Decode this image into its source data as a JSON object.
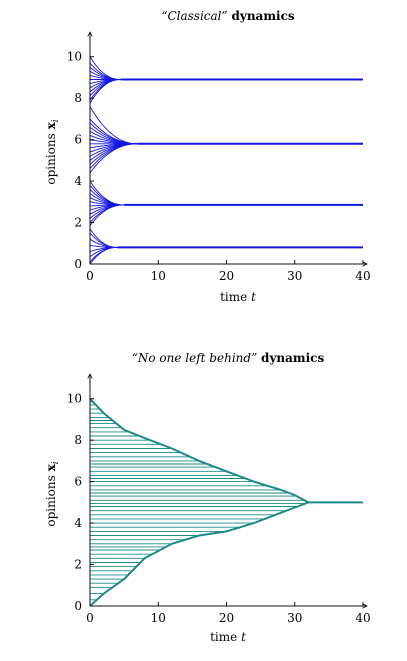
{
  "chart_data": [
    {
      "type": "line",
      "title_italic": "“Classical”",
      "title_bold": "dynamics",
      "xlabel": "time",
      "xlabel_var": "t",
      "ylabel": "opinions",
      "ylabel_var": "x",
      "ylabel_sub": "i",
      "xlim": [
        0,
        40
      ],
      "ylim": [
        0,
        11
      ],
      "xticks": [
        0,
        10,
        20,
        30,
        40
      ],
      "yticks": [
        0,
        2,
        4,
        6,
        8,
        10
      ],
      "color": "#1515e0",
      "clusters": [
        {
          "center": 8.9,
          "converge_t": 4.5,
          "start": [
            10.0,
            9.7,
            9.5,
            9.3,
            9.1,
            8.9,
            8.7,
            8.5,
            8.3,
            8.1,
            7.9,
            7.75
          ]
        },
        {
          "center": 5.8,
          "converge_t": 7.0,
          "start": [
            7.6,
            7.0,
            6.8,
            6.6,
            6.4,
            6.2,
            6.0,
            5.8,
            5.6,
            5.4,
            5.2,
            5.0,
            4.8,
            4.6,
            4.4
          ]
        },
        {
          "center": 2.85,
          "converge_t": 5.0,
          "start": [
            4.0,
            3.8,
            3.6,
            3.4,
            3.2,
            3.0,
            2.8,
            2.6,
            2.4,
            2.2,
            2.0,
            1.85
          ]
        },
        {
          "center": 0.8,
          "converge_t": 4.0,
          "start": [
            1.7,
            1.5,
            1.2,
            0.9,
            0.6,
            0.35,
            0.1,
            0.0
          ]
        }
      ]
    },
    {
      "type": "line",
      "title_italic": "“No one left behind”",
      "title_bold": "dynamics",
      "xlabel": "time",
      "xlabel_var": "t",
      "ylabel": "opinions",
      "ylabel_var": "x",
      "ylabel_sub": "i",
      "xlim": [
        0,
        40
      ],
      "ylim": [
        0,
        11
      ],
      "xticks": [
        0,
        10,
        20,
        30,
        40
      ],
      "yticks": [
        0,
        2,
        4,
        6,
        8,
        10
      ],
      "color": "#1a8a8a",
      "consensus": 5.0,
      "consensus_t": 32,
      "upper_envelope": [
        [
          0,
          10.0
        ],
        [
          2,
          9.3
        ],
        [
          5,
          8.5
        ],
        [
          8,
          8.1
        ],
        [
          12,
          7.6
        ],
        [
          16,
          7.0
        ],
        [
          20,
          6.5
        ],
        [
          24,
          6.0
        ],
        [
          28,
          5.6
        ],
        [
          30,
          5.35
        ],
        [
          32,
          5.0
        ]
      ],
      "lower_envelope": [
        [
          0,
          0.0
        ],
        [
          2,
          0.6
        ],
        [
          5,
          1.3
        ],
        [
          8,
          2.3
        ],
        [
          12,
          3.0
        ],
        [
          16,
          3.4
        ],
        [
          20,
          3.6
        ],
        [
          24,
          4.0
        ],
        [
          28,
          4.5
        ],
        [
          30,
          4.75
        ],
        [
          32,
          5.0
        ]
      ],
      "initial_opinions": [
        10.0,
        9.85,
        9.7,
        9.5,
        9.3,
        9.1,
        8.95,
        8.8,
        8.6,
        8.4,
        8.2,
        8.0,
        7.8,
        7.6,
        7.4,
        7.2,
        7.0,
        6.85,
        6.7,
        6.5,
        6.3,
        6.15,
        6.0,
        5.8,
        5.6,
        5.45,
        5.3,
        5.1,
        4.95,
        4.8,
        4.6,
        4.4,
        4.2,
        4.0,
        3.8,
        3.6,
        3.4,
        3.2,
        3.0,
        2.85,
        2.7,
        2.5,
        2.3,
        2.1,
        1.9,
        1.7,
        1.5,
        1.3,
        1.1,
        0.9,
        0.6,
        0.3,
        0.0
      ]
    }
  ]
}
